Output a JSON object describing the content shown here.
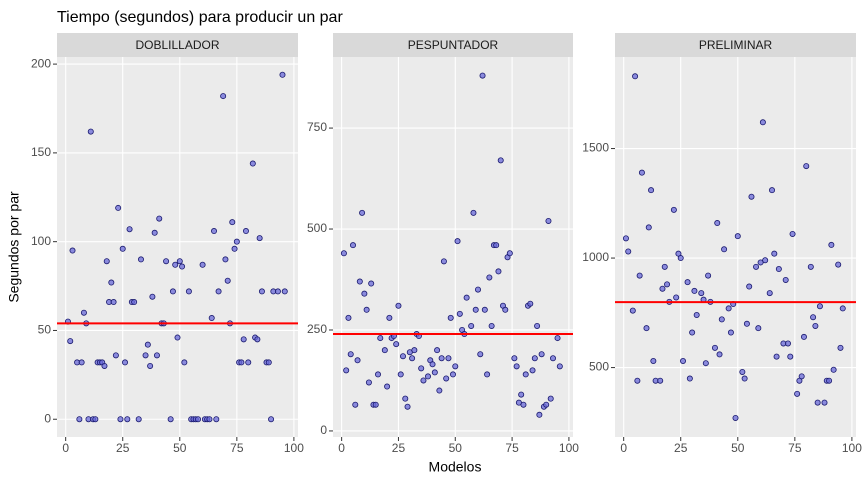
{
  "chart_data": {
    "type": "scatter",
    "title": "Tiempo (segundos) para producir un par",
    "xlabel": "Modelos",
    "ylabel": "Segundos por par",
    "point_color": "#6a6ad8",
    "point_edge": "#1a1a6e",
    "line_color": "#ff0000",
    "grid": true,
    "facets": [
      {
        "strip": "DOBLILLADOR",
        "xlim": [
          -3.8,
          101.8
        ],
        "xticks": [
          0,
          25,
          50,
          75,
          100
        ],
        "ylim": [
          -10,
          204
        ],
        "yticks": [
          0,
          50,
          100,
          150,
          200
        ],
        "hline": 54,
        "x": [
          1,
          2,
          3,
          5,
          6,
          7,
          8,
          9,
          10,
          11,
          12,
          13,
          14,
          15,
          16,
          17,
          18,
          19,
          20,
          21,
          22,
          23,
          24,
          25,
          26,
          27,
          28,
          29,
          30,
          32,
          33,
          35,
          36,
          37,
          38,
          39,
          40,
          41,
          42,
          43,
          44,
          46,
          47,
          48,
          49,
          50,
          51,
          52,
          54,
          55,
          56,
          57,
          58,
          60,
          61,
          62,
          63,
          64,
          65,
          66,
          67,
          69,
          70,
          71,
          72,
          73,
          74,
          75,
          76,
          77,
          78,
          79,
          80,
          82,
          83,
          84,
          85,
          86,
          88,
          89,
          90,
          91,
          93,
          95,
          96
        ],
        "values": [
          55,
          44,
          95,
          32,
          0,
          32,
          60,
          54,
          0,
          162,
          0,
          0,
          32,
          32,
          32,
          30,
          89,
          66,
          77,
          66,
          36,
          119,
          0,
          96,
          32,
          0,
          107,
          66,
          66,
          0,
          90,
          36,
          42,
          30,
          69,
          105,
          36,
          113,
          54,
          54,
          89,
          0,
          72,
          87,
          46,
          89,
          86,
          32,
          72,
          0,
          0,
          0,
          0,
          87,
          0,
          0,
          0,
          57,
          106,
          0,
          72,
          182,
          90,
          78,
          54,
          111,
          96,
          100,
          32,
          32,
          45,
          106,
          32,
          144,
          46,
          45,
          102,
          72,
          32,
          32,
          0,
          72,
          72,
          194,
          72
        ]
      },
      {
        "strip": "PESPUNTADOR",
        "xlim": [
          -3.8,
          101.8
        ],
        "xticks": [
          0,
          25,
          50,
          75,
          100
        ],
        "ylim": [
          -15,
          926
        ],
        "yticks": [
          0,
          250,
          500,
          750
        ],
        "hline": 240,
        "x": [
          1,
          2,
          3,
          4,
          5,
          6,
          7,
          8,
          9,
          10,
          11,
          12,
          13,
          14,
          15,
          16,
          17,
          19,
          20,
          21,
          22,
          23,
          24,
          25,
          26,
          27,
          28,
          29,
          30,
          31,
          32,
          33,
          34,
          35,
          36,
          38,
          39,
          40,
          41,
          42,
          43,
          44,
          45,
          46,
          47,
          48,
          49,
          50,
          51,
          52,
          53,
          54,
          55,
          57,
          58,
          59,
          60,
          61,
          62,
          63,
          64,
          65,
          66,
          67,
          68,
          69,
          70,
          71,
          72,
          73,
          74,
          76,
          77,
          78,
          79,
          80,
          81,
          82,
          83,
          84,
          85,
          86,
          87,
          88,
          89,
          90,
          91,
          92,
          93,
          95,
          96
        ],
        "values": [
          440,
          150,
          280,
          190,
          460,
          65,
          175,
          370,
          540,
          340,
          300,
          120,
          365,
          65,
          65,
          140,
          230,
          200,
          110,
          280,
          230,
          235,
          215,
          310,
          140,
          185,
          80,
          60,
          195,
          180,
          200,
          240,
          235,
          155,
          125,
          135,
          175,
          165,
          145,
          200,
          100,
          180,
          420,
          130,
          180,
          280,
          140,
          160,
          470,
          290,
          250,
          240,
          330,
          260,
          540,
          300,
          350,
          190,
          880,
          300,
          140,
          380,
          260,
          460,
          460,
          395,
          670,
          310,
          300,
          430,
          440,
          180,
          160,
          70,
          90,
          65,
          140,
          310,
          315,
          150,
          180,
          260,
          40,
          190,
          60,
          65,
          520,
          80,
          180,
          230,
          160
        ]
      },
      {
        "strip": "PRELIMINAR",
        "xlim": [
          -3.8,
          101.8
        ],
        "xticks": [
          0,
          25,
          50,
          75,
          100
        ],
        "ylim": [
          183,
          1918
        ],
        "yticks": [
          500,
          1000,
          1500
        ],
        "hline": 799,
        "x": [
          1,
          2,
          4,
          5,
          6,
          7,
          8,
          10,
          11,
          12,
          13,
          14,
          16,
          17,
          18,
          19,
          20,
          22,
          23,
          24,
          25,
          26,
          28,
          29,
          30,
          31,
          32,
          34,
          35,
          36,
          37,
          38,
          40,
          41,
          42,
          43,
          44,
          46,
          47,
          48,
          49,
          50,
          52,
          53,
          54,
          55,
          56,
          58,
          59,
          60,
          61,
          62,
          64,
          65,
          66,
          67,
          68,
          70,
          71,
          72,
          73,
          74,
          76,
          77,
          78,
          79,
          80,
          82,
          83,
          84,
          85,
          86,
          88,
          89,
          90,
          91,
          92,
          94,
          95,
          96
        ],
        "values": [
          1090,
          1030,
          760,
          1830,
          440,
          920,
          1390,
          680,
          1140,
          1310,
          530,
          440,
          440,
          860,
          960,
          880,
          800,
          1220,
          820,
          1020,
          1000,
          530,
          890,
          450,
          660,
          850,
          740,
          840,
          810,
          520,
          920,
          800,
          590,
          1160,
          560,
          720,
          1040,
          770,
          660,
          790,
          270,
          1100,
          480,
          450,
          700,
          870,
          1280,
          960,
          680,
          980,
          1620,
          990,
          840,
          1310,
          1020,
          550,
          950,
          610,
          900,
          610,
          550,
          1110,
          380,
          440,
          460,
          640,
          1420,
          960,
          730,
          690,
          340,
          780,
          340,
          440,
          440,
          1060,
          490,
          970,
          590,
          770
        ]
      }
    ]
  }
}
